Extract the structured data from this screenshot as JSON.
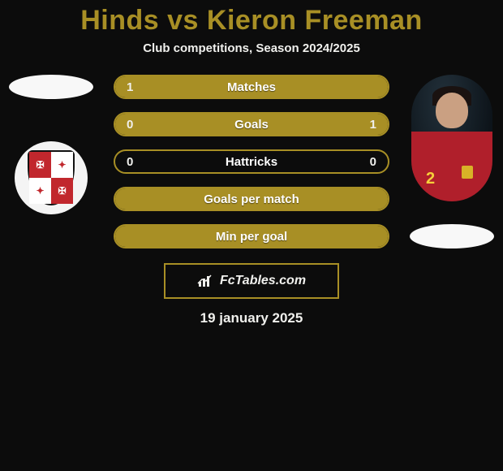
{
  "title": {
    "text": "Hinds vs Kieron Freeman",
    "color": "#a88f25",
    "fontsize": 34
  },
  "subtitle": {
    "text": "Club competitions, Season 2024/2025",
    "color": "#f0f0ed",
    "fontsize": 15
  },
  "date": {
    "text": "19 january 2025",
    "color": "#f0f0ed",
    "fontsize": 17
  },
  "brand": {
    "text": "FcTables.com",
    "border_color": "#a88f25"
  },
  "colors": {
    "accent": "#a88f25",
    "accent_fill": "#a88f25",
    "bar_border": "#a88f25",
    "bg": "#0c0c0c",
    "text": "#f0f0ed"
  },
  "left_player": {
    "name": "Hinds",
    "placeholder_oval_color": "#f8f8f8",
    "badge_bg": "#f4f4f4",
    "badge_quarters": [
      "red",
      "wht",
      "wht",
      "red"
    ],
    "badge_cross": "✠"
  },
  "right_player": {
    "name": "Kieron Freeman",
    "jersey_color": "#b01f2b",
    "jersey_number": "2",
    "number_color": "#f5cf3a",
    "placeholder_oval_color": "#f8f8f8"
  },
  "bars": [
    {
      "label": "Matches",
      "left": "1",
      "right": "",
      "fill_left_pct": 100,
      "fill_right_pct": 0,
      "show_left": true,
      "show_right": false
    },
    {
      "label": "Goals",
      "left": "0",
      "right": "1",
      "fill_left_pct": 18,
      "fill_right_pct": 82,
      "show_left": true,
      "show_right": true
    },
    {
      "label": "Hattricks",
      "left": "0",
      "right": "0",
      "fill_left_pct": 0,
      "fill_right_pct": 0,
      "show_left": true,
      "show_right": true
    },
    {
      "label": "Goals per match",
      "left": "",
      "right": "",
      "fill_left_pct": 100,
      "fill_right_pct": 0,
      "show_left": false,
      "show_right": false
    },
    {
      "label": "Min per goal",
      "left": "",
      "right": "",
      "fill_left_pct": 0,
      "fill_right_pct": 100,
      "show_left": false,
      "show_right": false
    }
  ],
  "bar_style": {
    "height": 30,
    "radius": 15,
    "gap": 16,
    "label_fontsize": 15,
    "value_fontsize": 15,
    "fill_color": "#a88f25",
    "empty_color": "transparent"
  }
}
